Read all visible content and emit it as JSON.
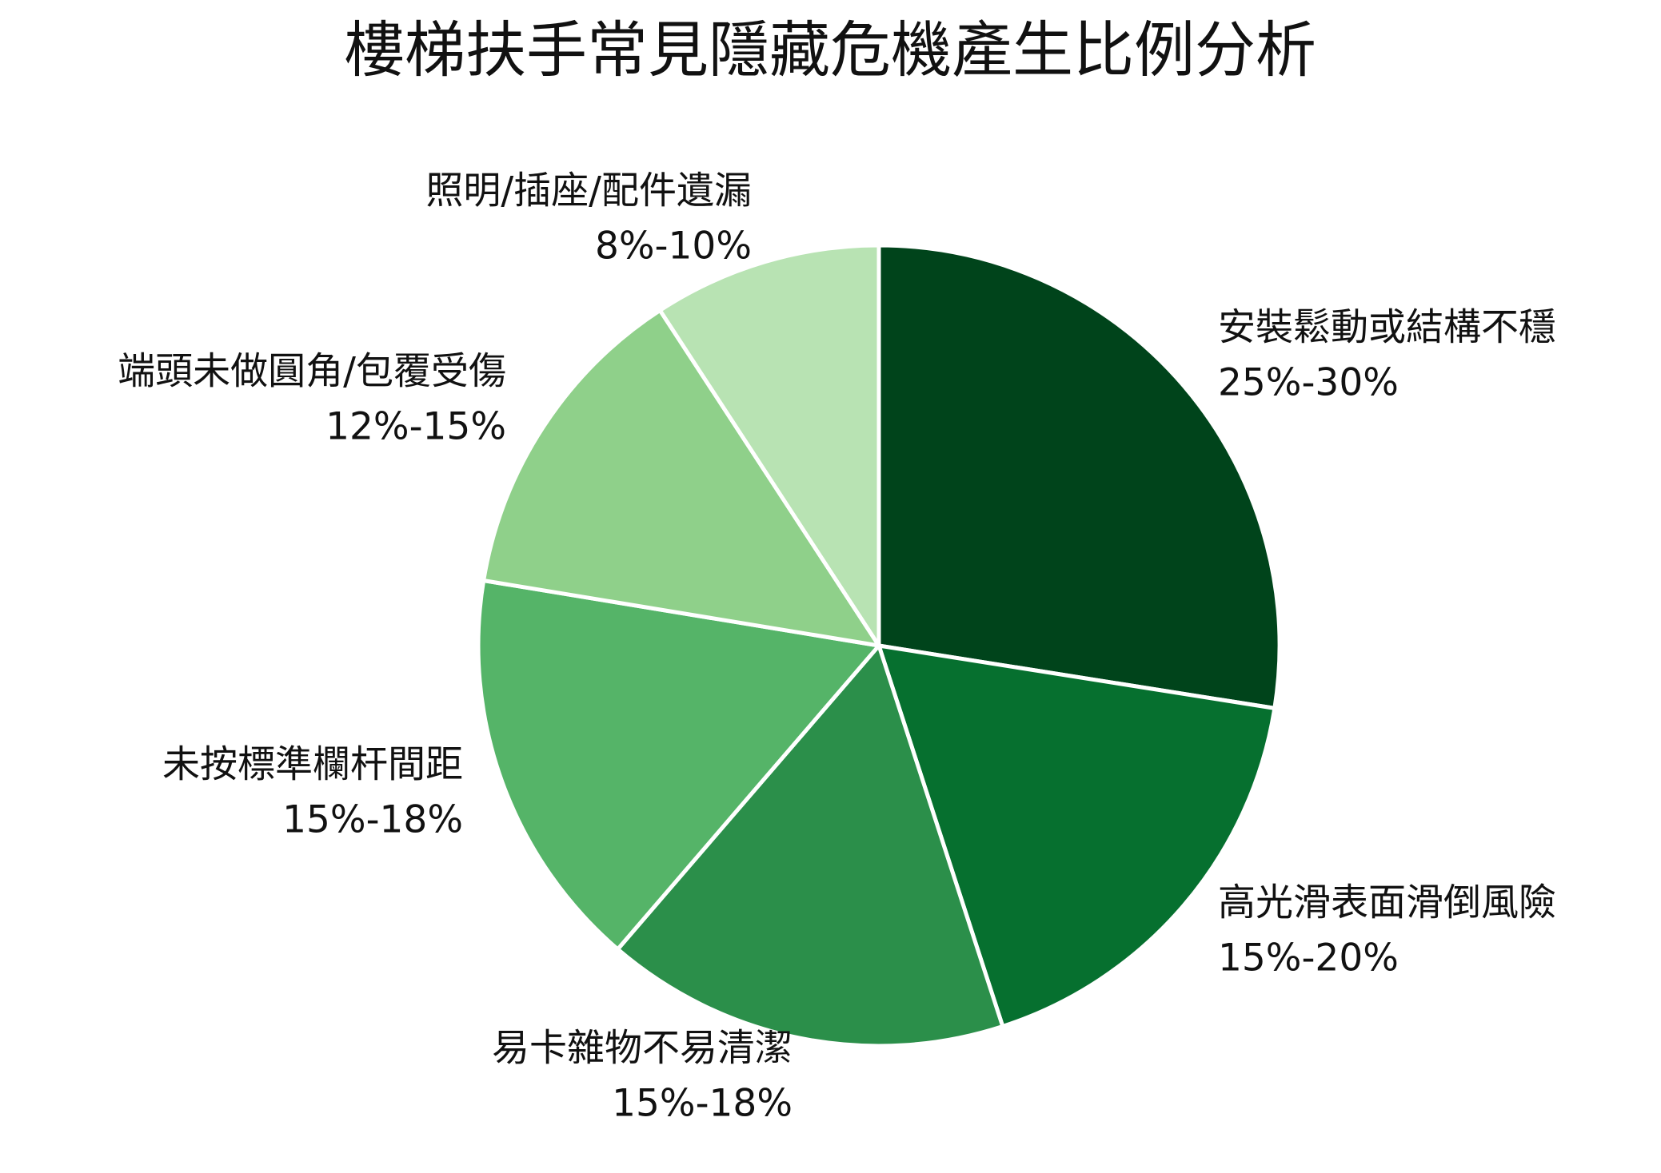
{
  "chart_data": {
    "type": "pie",
    "title": "樓梯扶手常見隱藏危機產生比例分析",
    "categories": [
      "安裝鬆動或結構不穩",
      "高光滑表面滑倒風險",
      "易卡雜物不易清潔",
      "未按標準欄杆間距",
      "端頭未做圓角/包覆受傷",
      "照明/插座/配件遺漏"
    ],
    "values": [
      27.5,
      17.5,
      16.3,
      16.3,
      13.2,
      9.2
    ],
    "value_labels": [
      "25%-30%",
      "15%-20%",
      "15%-18%",
      "15%-18%",
      "12%-15%",
      "8%-10%"
    ],
    "colors": [
      "#00441b",
      "#06702f",
      "#2b8f4a",
      "#55b468",
      "#8fd08a",
      "#b8e3b3"
    ]
  }
}
